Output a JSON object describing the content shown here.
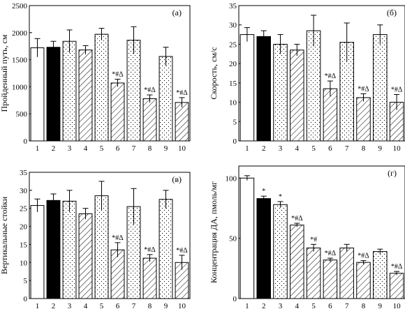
{
  "colors": {
    "ink": "#000000",
    "paper": "#ffffff"
  },
  "chart_data": [
    {
      "type": "bar",
      "panel_label": "(а)",
      "ylabel": "Пройденный путь, см",
      "xlabel": "",
      "ylim": [
        0,
        2500
      ],
      "yticks": [
        0,
        500,
        1000,
        1500,
        2000,
        2500
      ],
      "categories": [
        "1",
        "2",
        "3",
        "4",
        "5",
        "6",
        "7",
        "8",
        "9",
        "10"
      ],
      "values": [
        1720,
        1730,
        1840,
        1680,
        1970,
        1070,
        1860,
        780,
        1560,
        710
      ],
      "errors": [
        170,
        110,
        210,
        80,
        110,
        70,
        250,
        70,
        170,
        90
      ],
      "fills": [
        "white",
        "black",
        "dots",
        "hatch",
        "dots",
        "hatch",
        "dots",
        "hatch",
        "dots",
        "hatch"
      ],
      "annotations": [
        "",
        "",
        "",
        "",
        "",
        "*#Δ",
        "",
        "*#Δ",
        "",
        "*#Δ"
      ]
    },
    {
      "type": "bar",
      "panel_label": "(б)",
      "ylabel": "Скорость, см/с",
      "xlabel": "",
      "ylim": [
        0,
        35
      ],
      "yticks": [
        0,
        5,
        10,
        15,
        20,
        25,
        30,
        35
      ],
      "categories": [
        "1",
        "2",
        "3",
        "4",
        "5",
        "6",
        "7",
        "8",
        "9",
        "10"
      ],
      "values": [
        27.5,
        27,
        25,
        23.5,
        28.5,
        13.5,
        25.5,
        11.2,
        27.5,
        10
      ],
      "errors": [
        1.8,
        1.5,
        2.5,
        1.5,
        4,
        2,
        5,
        1,
        2.5,
        2
      ],
      "fills": [
        "white",
        "black",
        "dots",
        "hatch",
        "dots",
        "hatch",
        "dots",
        "hatch",
        "dots",
        "hatch"
      ],
      "annotations": [
        "",
        "",
        "",
        "",
        "",
        "*#Δ",
        "",
        "*#Δ",
        "",
        "*#Δ"
      ]
    },
    {
      "type": "bar",
      "panel_label": "(в)",
      "ylabel": "Вертикальные стойки",
      "xlabel": "",
      "ylim": [
        0,
        35
      ],
      "yticks": [
        0,
        5,
        10,
        15,
        20,
        25,
        30,
        35
      ],
      "categories": [
        "1",
        "2",
        "3",
        "4",
        "5",
        "6",
        "7",
        "8",
        "9",
        "10"
      ],
      "values": [
        25.8,
        27.2,
        27,
        23.5,
        28.5,
        13.5,
        25.5,
        11.2,
        27.5,
        10
      ],
      "errors": [
        1.8,
        1.8,
        3,
        1.5,
        4,
        2,
        5,
        1,
        2.5,
        2
      ],
      "fills": [
        "white",
        "black",
        "dots",
        "hatch",
        "dots",
        "hatch",
        "dots",
        "hatch",
        "dots",
        "hatch"
      ],
      "annotations": [
        "",
        "",
        "",
        "",
        "",
        "*#Δ",
        "",
        "*#Δ",
        "",
        "*#Δ"
      ]
    },
    {
      "type": "bar",
      "panel_label": "(г)",
      "ylabel": "Концентрация ДА, пмоль/мг",
      "xlabel": "",
      "ylim": [
        0,
        110
      ],
      "yticks": [
        0,
        50,
        100
      ],
      "categories": [
        "1",
        "2",
        "3",
        "4",
        "5",
        "6",
        "7",
        "8",
        "9",
        "10"
      ],
      "values": [
        100,
        83,
        78,
        61,
        42,
        32,
        42,
        30,
        39,
        21
      ],
      "errors": [
        2,
        2,
        2.5,
        1.5,
        3,
        1.5,
        3,
        1.5,
        2,
        1.5
      ],
      "fills": [
        "white",
        "black",
        "dots",
        "hatch",
        "hatch",
        "hatch",
        "hatch",
        "hatch",
        "dots",
        "hatch"
      ],
      "annotations": [
        "",
        "*",
        "*",
        "*#Δ",
        "*#",
        "*#Δ",
        "",
        "*#Δ",
        "",
        "*#Δ"
      ]
    }
  ]
}
